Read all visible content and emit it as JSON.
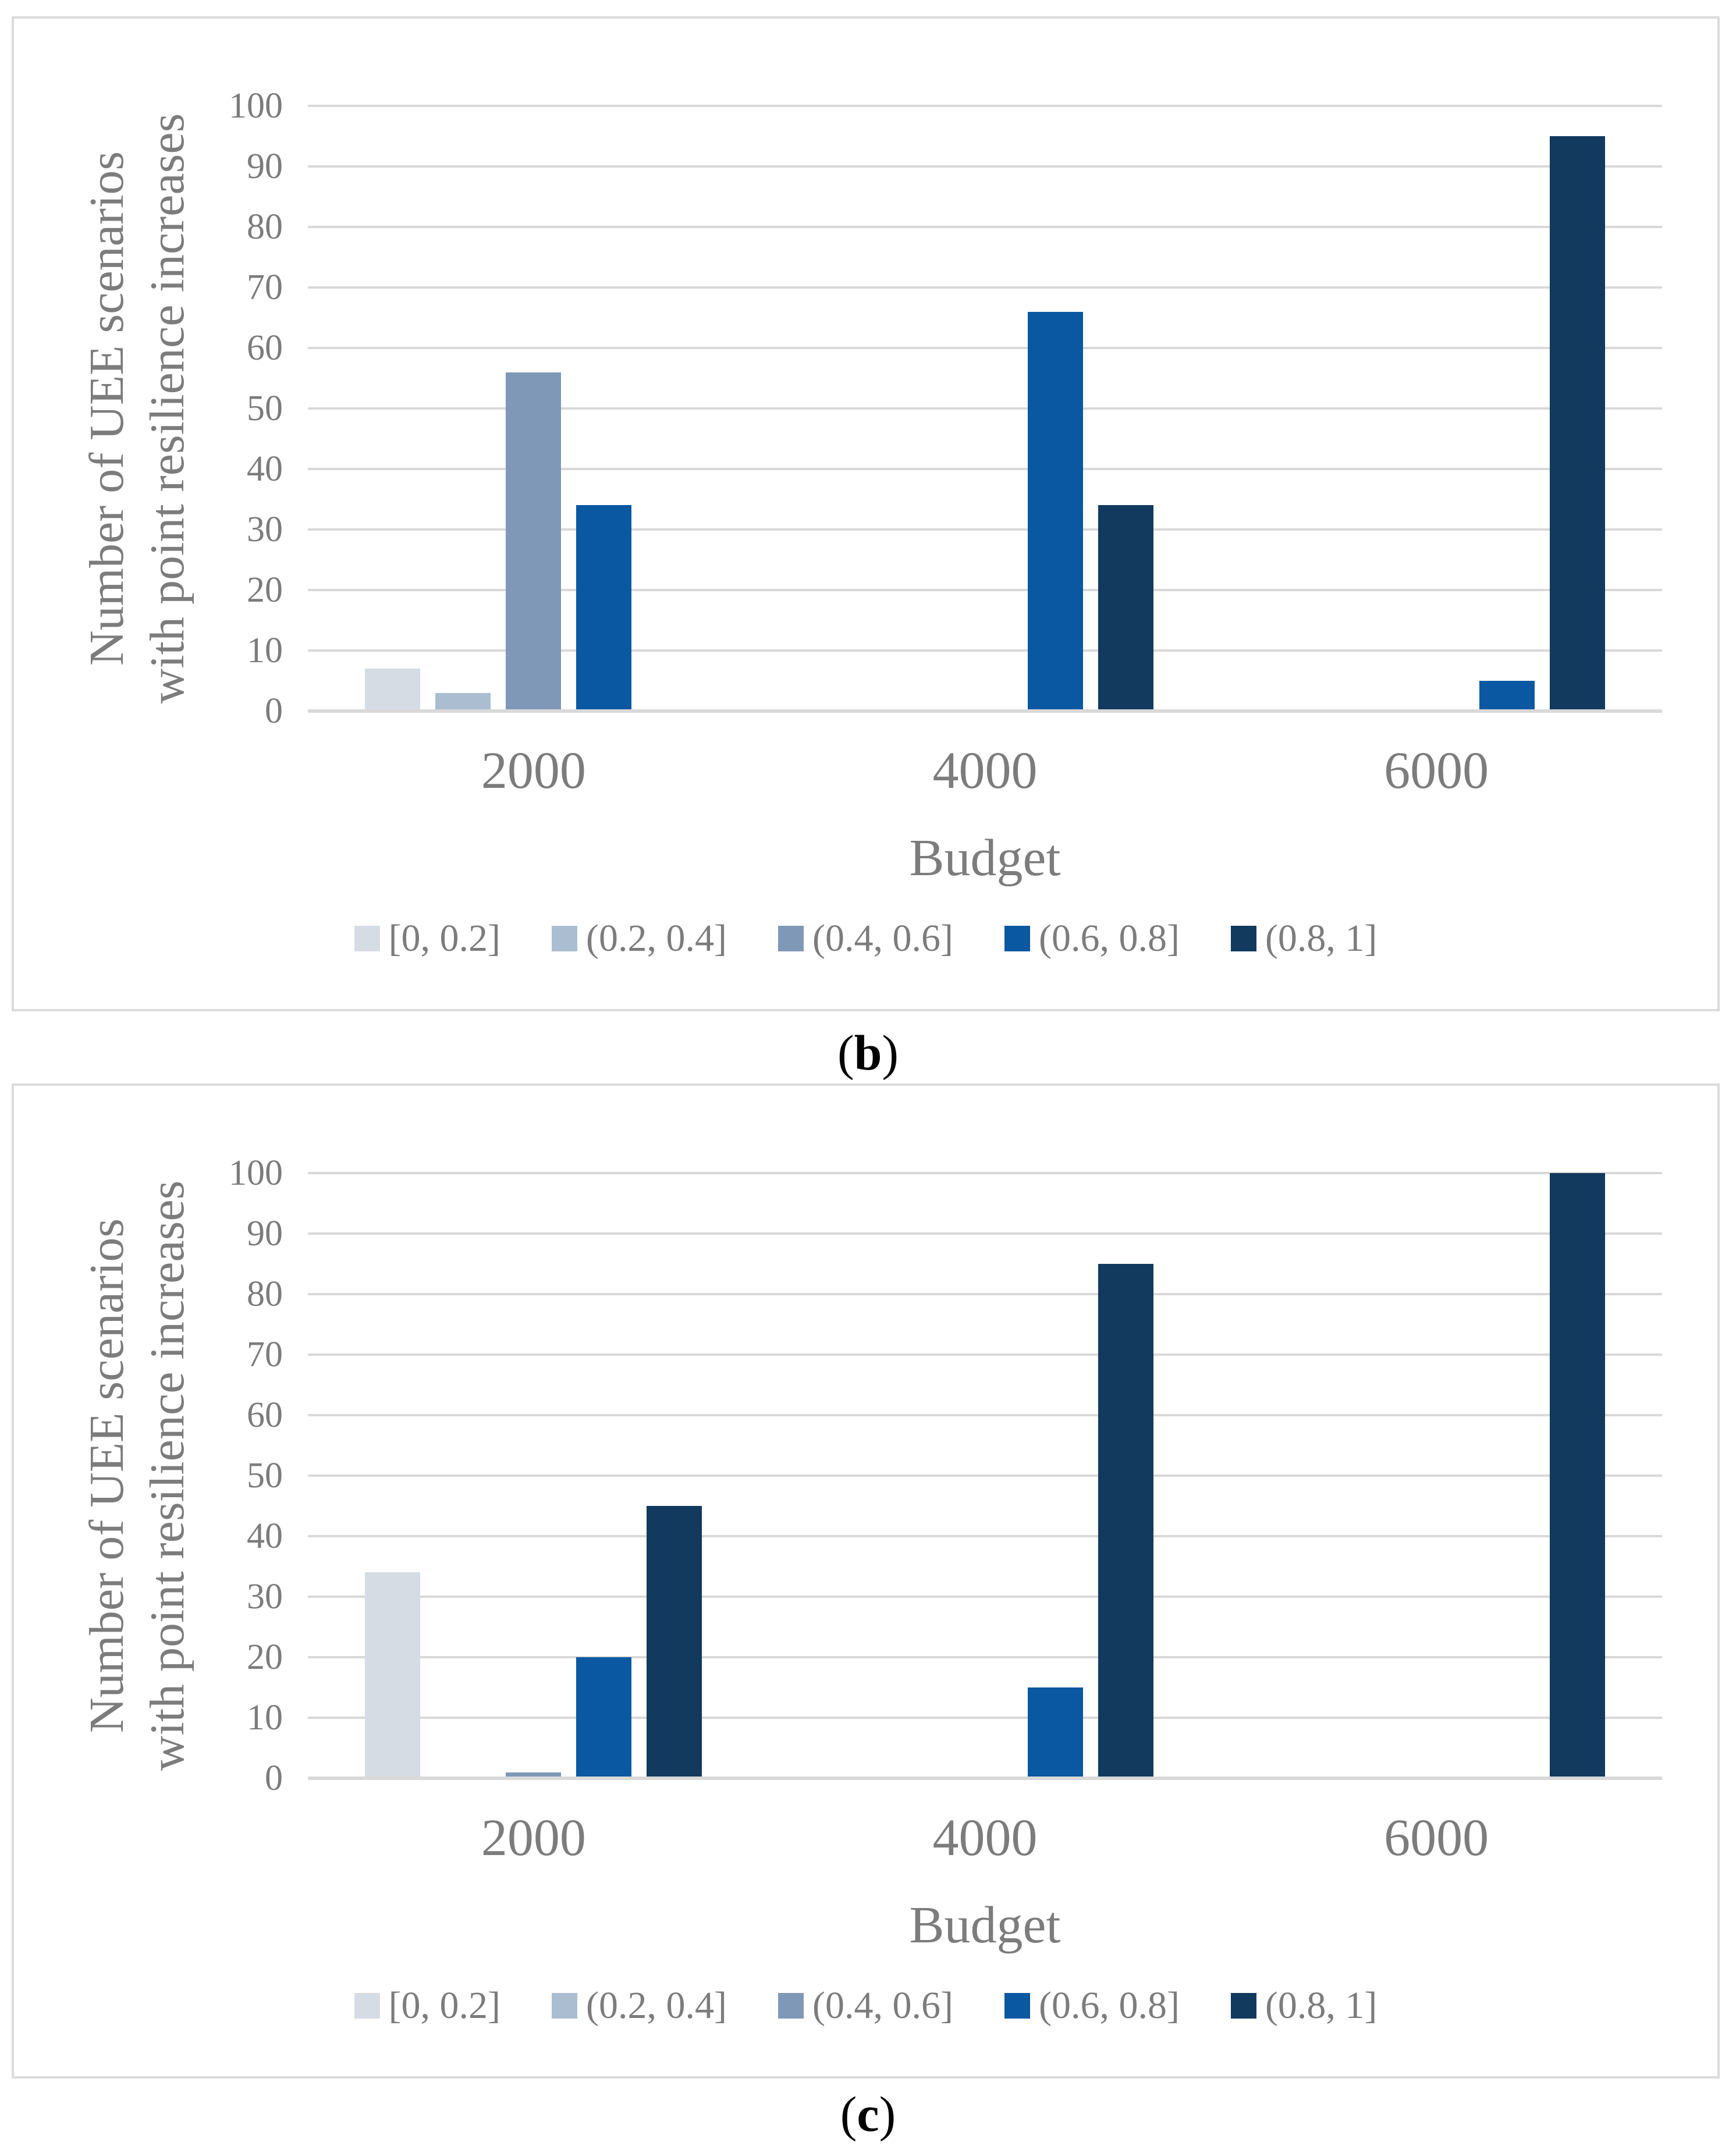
{
  "figure": {
    "panels": [
      {
        "id": "b",
        "caption_pre": "(",
        "caption_letter": "b",
        "caption_post": ")"
      },
      {
        "id": "c",
        "caption_pre": "(",
        "caption_letter": "c",
        "caption_post": ")"
      }
    ]
  },
  "chart_data": [
    {
      "type": "bar",
      "title": "(b)",
      "xlabel": "Budget",
      "ylabel_lines": [
        "Number of UEE scenarios",
        "with point resilience increases"
      ],
      "ylim": [
        0,
        100
      ],
      "yticks": [
        0,
        10,
        20,
        30,
        40,
        50,
        60,
        70,
        80,
        90,
        100
      ],
      "grid": true,
      "legend_position": "bottom",
      "categories": [
        "2000",
        "4000",
        "6000"
      ],
      "series": [
        {
          "name": "[0, 0.2]",
          "color": "#D6DCE4",
          "values": [
            7,
            0,
            0
          ]
        },
        {
          "name": "(0.2, 0.4]",
          "color": "#ABBDD1",
          "values": [
            3,
            0,
            0
          ]
        },
        {
          "name": "(0.4, 0.6]",
          "color": "#8098B7",
          "values": [
            56,
            0,
            0
          ]
        },
        {
          "name": "(0.6, 0.8]",
          "color": "#0A58A2",
          "values": [
            34,
            66,
            5
          ]
        },
        {
          "name": "(0.8, 1]",
          "color": "#12395E",
          "values": [
            0,
            34,
            95
          ]
        }
      ]
    },
    {
      "type": "bar",
      "title": "(c)",
      "xlabel": "Budget",
      "ylabel_lines": [
        "Number of UEE scenarios",
        "with point resilience increases"
      ],
      "ylim": [
        0,
        100
      ],
      "yticks": [
        0,
        10,
        20,
        30,
        40,
        50,
        60,
        70,
        80,
        90,
        100
      ],
      "grid": true,
      "legend_position": "bottom",
      "categories": [
        "2000",
        "4000",
        "6000"
      ],
      "series": [
        {
          "name": "[0, 0.2]",
          "color": "#D6DCE4",
          "values": [
            34,
            0,
            0
          ]
        },
        {
          "name": "(0.2, 0.4]",
          "color": "#ABBDD1",
          "values": [
            0,
            0,
            0
          ]
        },
        {
          "name": "(0.4, 0.6]",
          "color": "#8098B7",
          "values": [
            1,
            0,
            0
          ]
        },
        {
          "name": "(0.6, 0.8]",
          "color": "#0A58A2",
          "values": [
            20,
            15,
            0
          ]
        },
        {
          "name": "(0.8, 1]",
          "color": "#12395E",
          "values": [
            45,
            85,
            100
          ]
        }
      ]
    }
  ],
  "style": {
    "grid_color": "#D9D9D9",
    "panel_border_color": "#DBDBDB",
    "text_color": "#7C7C7C",
    "caption_color": "#000000",
    "background": "#FFFFFF"
  }
}
